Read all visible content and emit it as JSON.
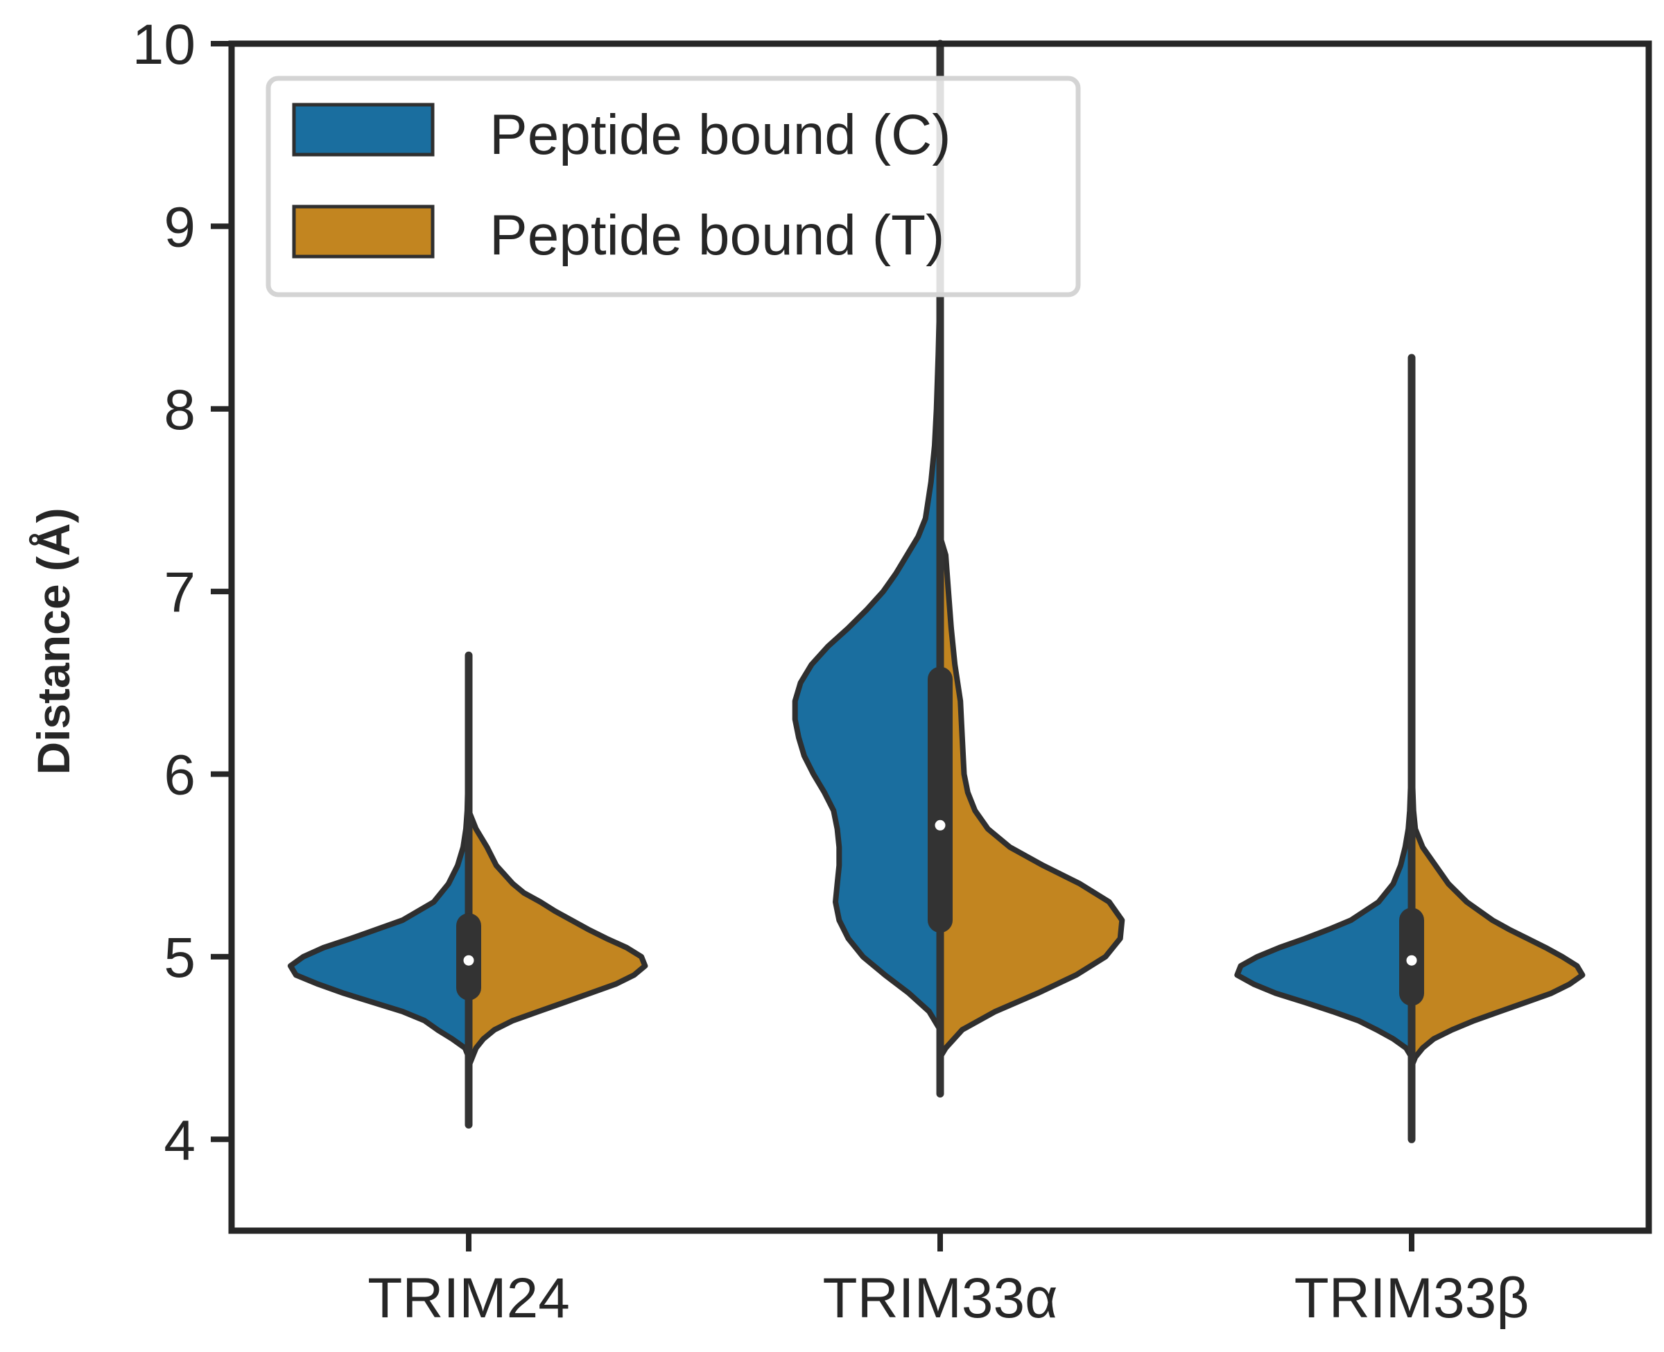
{
  "chart_data": {
    "type": "violin",
    "split": true,
    "title": "",
    "xlabel": "",
    "ylabel": "Distance (Å)",
    "ylim": [
      3.5,
      10
    ],
    "yticks": [
      4,
      5,
      6,
      7,
      8,
      9,
      10
    ],
    "categories": [
      "TRIM24",
      "TRIM33α",
      "TRIM33β"
    ],
    "legend": {
      "placement": "top-left"
    },
    "grid": false,
    "colors": {
      "axis": "#262626",
      "violin_outline": "#2f2f2f",
      "box": "#333333",
      "median_dot": "#ffffff"
    },
    "series": [
      {
        "name": "Peptide bound (C)",
        "color": "#1a6e9f",
        "side": "left",
        "distributions": [
          {
            "category": "TRIM24",
            "min": 4.45,
            "max": 6.1,
            "profile": [
              [
                4.45,
                0.0
              ],
              [
                4.5,
                0.02
              ],
              [
                4.55,
                0.09
              ],
              [
                4.6,
                0.17
              ],
              [
                4.65,
                0.24
              ],
              [
                4.7,
                0.36
              ],
              [
                4.75,
                0.52
              ],
              [
                4.8,
                0.68
              ],
              [
                4.85,
                0.82
              ],
              [
                4.9,
                0.94
              ],
              [
                4.95,
                0.97
              ],
              [
                5.0,
                0.9
              ],
              [
                5.05,
                0.79
              ],
              [
                5.1,
                0.64
              ],
              [
                5.15,
                0.5
              ],
              [
                5.2,
                0.36
              ],
              [
                5.3,
                0.19
              ],
              [
                5.4,
                0.11
              ],
              [
                5.5,
                0.06
              ],
              [
                5.6,
                0.03
              ],
              [
                5.7,
                0.015
              ],
              [
                5.8,
                0.008
              ],
              [
                6.0,
                0.003
              ],
              [
                6.1,
                0.0
              ]
            ]
          },
          {
            "category": "TRIM33α",
            "min": 4.6,
            "max": 8.7,
            "profile": [
              [
                4.6,
                0.0
              ],
              [
                4.7,
                0.06
              ],
              [
                4.8,
                0.17
              ],
              [
                4.9,
                0.3
              ],
              [
                5.0,
                0.42
              ],
              [
                5.1,
                0.5
              ],
              [
                5.2,
                0.55
              ],
              [
                5.3,
                0.57
              ],
              [
                5.4,
                0.56
              ],
              [
                5.5,
                0.55
              ],
              [
                5.6,
                0.55
              ],
              [
                5.7,
                0.56
              ],
              [
                5.8,
                0.58
              ],
              [
                5.9,
                0.63
              ],
              [
                6.0,
                0.69
              ],
              [
                6.1,
                0.74
              ],
              [
                6.2,
                0.77
              ],
              [
                6.3,
                0.79
              ],
              [
                6.4,
                0.79
              ],
              [
                6.5,
                0.76
              ],
              [
                6.6,
                0.7
              ],
              [
                6.7,
                0.61
              ],
              [
                6.8,
                0.5
              ],
              [
                6.9,
                0.4
              ],
              [
                7.0,
                0.31
              ],
              [
                7.1,
                0.24
              ],
              [
                7.2,
                0.18
              ],
              [
                7.3,
                0.12
              ],
              [
                7.4,
                0.08
              ],
              [
                7.6,
                0.05
              ],
              [
                7.8,
                0.03
              ],
              [
                8.0,
                0.02
              ],
              [
                8.3,
                0.01
              ],
              [
                8.7,
                0.0
              ]
            ]
          },
          {
            "category": "TRIM33β",
            "min": 4.45,
            "max": 6.1,
            "profile": [
              [
                4.45,
                0.0
              ],
              [
                4.5,
                0.03
              ],
              [
                4.55,
                0.1
              ],
              [
                4.6,
                0.19
              ],
              [
                4.65,
                0.29
              ],
              [
                4.7,
                0.43
              ],
              [
                4.75,
                0.58
              ],
              [
                4.8,
                0.74
              ],
              [
                4.85,
                0.86
              ],
              [
                4.9,
                0.95
              ],
              [
                4.95,
                0.93
              ],
              [
                5.0,
                0.84
              ],
              [
                5.05,
                0.72
              ],
              [
                5.1,
                0.58
              ],
              [
                5.15,
                0.45
              ],
              [
                5.2,
                0.33
              ],
              [
                5.3,
                0.18
              ],
              [
                5.4,
                0.1
              ],
              [
                5.5,
                0.06
              ],
              [
                5.6,
                0.035
              ],
              [
                5.7,
                0.018
              ],
              [
                5.8,
                0.01
              ],
              [
                6.0,
                0.003
              ],
              [
                6.1,
                0.0
              ]
            ]
          }
        ]
      },
      {
        "name": "Peptide bound (T)",
        "color": "#c28520",
        "side": "right",
        "distributions": [
          {
            "category": "TRIM24",
            "min": 4.4,
            "max": 5.8,
            "profile": [
              [
                4.4,
                0.0
              ],
              [
                4.5,
                0.04
              ],
              [
                4.55,
                0.08
              ],
              [
                4.6,
                0.14
              ],
              [
                4.65,
                0.24
              ],
              [
                4.7,
                0.38
              ],
              [
                4.75,
                0.52
              ],
              [
                4.8,
                0.66
              ],
              [
                4.85,
                0.8
              ],
              [
                4.9,
                0.9
              ],
              [
                4.95,
                0.96
              ],
              [
                5.0,
                0.94
              ],
              [
                5.05,
                0.86
              ],
              [
                5.1,
                0.75
              ],
              [
                5.15,
                0.65
              ],
              [
                5.2,
                0.56
              ],
              [
                5.25,
                0.47
              ],
              [
                5.3,
                0.39
              ],
              [
                5.35,
                0.3
              ],
              [
                5.4,
                0.24
              ],
              [
                5.5,
                0.15
              ],
              [
                5.6,
                0.1
              ],
              [
                5.7,
                0.04
              ],
              [
                5.8,
                0.0
              ]
            ]
          },
          {
            "category": "TRIM33α",
            "min": 4.45,
            "max": 7.3,
            "profile": [
              [
                4.45,
                0.0
              ],
              [
                4.5,
                0.03
              ],
              [
                4.6,
                0.12
              ],
              [
                4.7,
                0.3
              ],
              [
                4.8,
                0.53
              ],
              [
                4.9,
                0.74
              ],
              [
                5.0,
                0.9
              ],
              [
                5.1,
                0.98
              ],
              [
                5.2,
                0.99
              ],
              [
                5.3,
                0.92
              ],
              [
                5.4,
                0.76
              ],
              [
                5.5,
                0.56
              ],
              [
                5.6,
                0.38
              ],
              [
                5.7,
                0.26
              ],
              [
                5.8,
                0.19
              ],
              [
                5.9,
                0.15
              ],
              [
                6.0,
                0.13
              ],
              [
                6.2,
                0.12
              ],
              [
                6.4,
                0.11
              ],
              [
                6.6,
                0.08
              ],
              [
                6.8,
                0.06
              ],
              [
                7.0,
                0.045
              ],
              [
                7.2,
                0.03
              ],
              [
                7.3,
                0.0
              ]
            ]
          },
          {
            "category": "TRIM33β",
            "min": 4.4,
            "max": 6.1,
            "profile": [
              [
                4.4,
                0.0
              ],
              [
                4.45,
                0.02
              ],
              [
                4.5,
                0.06
              ],
              [
                4.55,
                0.12
              ],
              [
                4.6,
                0.22
              ],
              [
                4.65,
                0.34
              ],
              [
                4.7,
                0.48
              ],
              [
                4.75,
                0.62
              ],
              [
                4.8,
                0.76
              ],
              [
                4.85,
                0.86
              ],
              [
                4.9,
                0.93
              ],
              [
                4.95,
                0.9
              ],
              [
                5.0,
                0.82
              ],
              [
                5.05,
                0.73
              ],
              [
                5.1,
                0.63
              ],
              [
                5.15,
                0.53
              ],
              [
                5.2,
                0.44
              ],
              [
                5.3,
                0.3
              ],
              [
                5.4,
                0.2
              ],
              [
                5.5,
                0.13
              ],
              [
                5.6,
                0.06
              ],
              [
                5.7,
                0.02
              ],
              [
                5.8,
                0.01
              ],
              [
                6.0,
                0.003
              ],
              [
                6.1,
                0.0
              ]
            ]
          }
        ]
      }
    ],
    "overall": [
      {
        "category": "TRIM24",
        "whisker_low": 4.08,
        "whisker_high": 6.65,
        "q1": 4.83,
        "q3": 5.17,
        "median": 4.98
      },
      {
        "category": "TRIM33α",
        "whisker_low": 4.25,
        "whisker_high": 10.0,
        "q1": 5.2,
        "q3": 6.52,
        "median": 5.72
      },
      {
        "category": "TRIM33β",
        "whisker_low": 4.0,
        "whisker_high": 8.28,
        "q1": 4.8,
        "q3": 5.2,
        "median": 4.98
      }
    ]
  }
}
